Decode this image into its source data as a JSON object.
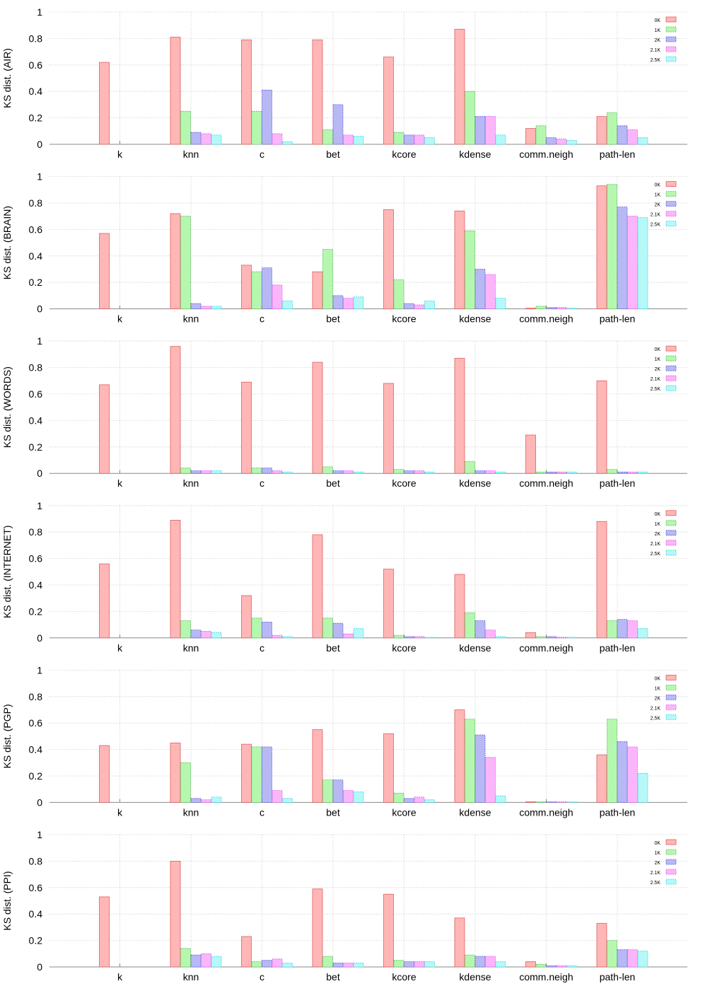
{
  "colors": {
    "series": [
      "#ffb6b6",
      "#b6f7b0",
      "#b8b8f5",
      "#fbb6fb",
      "#b6f8f8"
    ],
    "edges": [
      "#e06060",
      "#60c060",
      "#6060e0",
      "#e060e0",
      "#40d8e0"
    ],
    "grid": "#cccccc",
    "axis": "#888888"
  },
  "chart_data": [
    {
      "type": "bar",
      "ylabel": "KS dist. (AIR)",
      "ylim": [
        0,
        1
      ],
      "yticks": [
        "0",
        "0.2",
        "0.4",
        "0.6",
        "0.8",
        "1"
      ],
      "categories": [
        "k",
        "knn",
        "c",
        "bet",
        "kcore",
        "kdense",
        "comm.neigh",
        "path-len"
      ],
      "series": [
        {
          "name": "0K",
          "values": [
            0.62,
            0.81,
            0.79,
            0.79,
            0.66,
            0.87,
            0.12,
            0.21
          ]
        },
        {
          "name": "1K",
          "values": [
            0.0,
            0.25,
            0.25,
            0.11,
            0.09,
            0.4,
            0.14,
            0.24
          ]
        },
        {
          "name": "2K",
          "values": [
            0.0,
            0.09,
            0.41,
            0.3,
            0.07,
            0.21,
            0.05,
            0.14
          ]
        },
        {
          "name": "2.1K",
          "values": [
            0.0,
            0.08,
            0.08,
            0.07,
            0.07,
            0.21,
            0.04,
            0.11
          ]
        },
        {
          "name": "2.5K",
          "values": [
            0.0,
            0.07,
            0.02,
            0.06,
            0.05,
            0.07,
            0.03,
            0.05
          ]
        }
      ]
    },
    {
      "type": "bar",
      "ylabel": "KS dist. (BRAIN)",
      "ylim": [
        0,
        1
      ],
      "yticks": [
        "0",
        "0.2",
        "0.4",
        "0.6",
        "0.8",
        "1"
      ],
      "categories": [
        "k",
        "knn",
        "c",
        "bet",
        "kcore",
        "kdense",
        "comm.neigh",
        "path-len"
      ],
      "series": [
        {
          "name": "0K",
          "values": [
            0.57,
            0.72,
            0.33,
            0.28,
            0.75,
            0.74,
            0.005,
            0.93
          ]
        },
        {
          "name": "1K",
          "values": [
            0.0,
            0.7,
            0.28,
            0.45,
            0.22,
            0.59,
            0.02,
            0.94
          ]
        },
        {
          "name": "2K",
          "values": [
            0.0,
            0.04,
            0.31,
            0.1,
            0.04,
            0.3,
            0.01,
            0.77
          ]
        },
        {
          "name": "2.1K",
          "values": [
            0.0,
            0.02,
            0.18,
            0.08,
            0.03,
            0.26,
            0.01,
            0.7
          ]
        },
        {
          "name": "2.5K",
          "values": [
            0.0,
            0.02,
            0.06,
            0.09,
            0.06,
            0.08,
            0.005,
            0.69
          ]
        }
      ]
    },
    {
      "type": "bar",
      "ylabel": "KS dist. (WORDS)",
      "ylim": [
        0,
        1
      ],
      "yticks": [
        "0",
        "0.2",
        "0.4",
        "0.6",
        "0.8",
        "1"
      ],
      "categories": [
        "k",
        "knn",
        "c",
        "bet",
        "kcore",
        "kdense",
        "comm.neigh",
        "path-len"
      ],
      "series": [
        {
          "name": "0K",
          "values": [
            0.67,
            0.96,
            0.69,
            0.84,
            0.68,
            0.87,
            0.29,
            0.7
          ]
        },
        {
          "name": "1K",
          "values": [
            0.0,
            0.04,
            0.04,
            0.05,
            0.03,
            0.09,
            0.01,
            0.03
          ]
        },
        {
          "name": "2K",
          "values": [
            0.0,
            0.02,
            0.04,
            0.02,
            0.02,
            0.02,
            0.01,
            0.01
          ]
        },
        {
          "name": "2.1K",
          "values": [
            0.0,
            0.02,
            0.02,
            0.02,
            0.02,
            0.02,
            0.01,
            0.01
          ]
        },
        {
          "name": "2.5K",
          "values": [
            0.0,
            0.02,
            0.01,
            0.01,
            0.01,
            0.01,
            0.01,
            0.01
          ]
        }
      ]
    },
    {
      "type": "bar",
      "ylabel": "KS dist. (INTERNET)",
      "ylim": [
        0,
        1
      ],
      "yticks": [
        "0",
        "0.2",
        "0.4",
        "0.6",
        "0.8",
        "1"
      ],
      "categories": [
        "k",
        "knn",
        "c",
        "bet",
        "kcore",
        "kdense",
        "comm.neigh",
        "path-len"
      ],
      "series": [
        {
          "name": "0K",
          "values": [
            0.56,
            0.89,
            0.32,
            0.78,
            0.52,
            0.48,
            0.04,
            0.88
          ]
        },
        {
          "name": "1K",
          "values": [
            0.0,
            0.13,
            0.15,
            0.15,
            0.02,
            0.19,
            0.01,
            0.13
          ]
        },
        {
          "name": "2K",
          "values": [
            0.0,
            0.06,
            0.12,
            0.11,
            0.01,
            0.13,
            0.01,
            0.14
          ]
        },
        {
          "name": "2.1K",
          "values": [
            0.0,
            0.05,
            0.02,
            0.03,
            0.01,
            0.06,
            0.005,
            0.13
          ]
        },
        {
          "name": "2.5K",
          "values": [
            0.0,
            0.04,
            0.01,
            0.07,
            0.005,
            0.01,
            0.005,
            0.07
          ]
        }
      ]
    },
    {
      "type": "bar",
      "ylabel": "KS dist. (PGP)",
      "ylim": [
        0,
        1
      ],
      "yticks": [
        "0",
        "0.2",
        "0.4",
        "0.6",
        "0.8",
        "1"
      ],
      "categories": [
        "k",
        "knn",
        "c",
        "bet",
        "kcore",
        "kdense",
        "comm.neigh",
        "path-len"
      ],
      "series": [
        {
          "name": "0K",
          "values": [
            0.43,
            0.45,
            0.44,
            0.55,
            0.52,
            0.7,
            0.005,
            0.36
          ]
        },
        {
          "name": "1K",
          "values": [
            0.0,
            0.3,
            0.42,
            0.17,
            0.07,
            0.63,
            0.005,
            0.63
          ]
        },
        {
          "name": "2K",
          "values": [
            0.0,
            0.03,
            0.42,
            0.17,
            0.03,
            0.51,
            0.005,
            0.46
          ]
        },
        {
          "name": "2.1K",
          "values": [
            0.0,
            0.02,
            0.09,
            0.09,
            0.04,
            0.34,
            0.005,
            0.42
          ]
        },
        {
          "name": "2.5K",
          "values": [
            0.0,
            0.04,
            0.03,
            0.08,
            0.02,
            0.05,
            0.005,
            0.22
          ]
        }
      ]
    },
    {
      "type": "bar",
      "ylabel": "KS dist. (PPI)",
      "ylim": [
        0,
        1
      ],
      "yticks": [
        "0",
        "0.2",
        "0.4",
        "0.6",
        "0.8",
        "1"
      ],
      "categories": [
        "k",
        "knn",
        "c",
        "bet",
        "kcore",
        "kdense",
        "comm.neigh",
        "path-len"
      ],
      "series": [
        {
          "name": "0K",
          "values": [
            0.53,
            0.8,
            0.23,
            0.59,
            0.55,
            0.37,
            0.04,
            0.33
          ]
        },
        {
          "name": "1K",
          "values": [
            0.0,
            0.14,
            0.04,
            0.08,
            0.05,
            0.09,
            0.02,
            0.2
          ]
        },
        {
          "name": "2K",
          "values": [
            0.0,
            0.09,
            0.05,
            0.03,
            0.04,
            0.08,
            0.01,
            0.13
          ]
        },
        {
          "name": "2.1K",
          "values": [
            0.0,
            0.1,
            0.06,
            0.03,
            0.04,
            0.08,
            0.01,
            0.13
          ]
        },
        {
          "name": "2.5K",
          "values": [
            0.0,
            0.08,
            0.03,
            0.03,
            0.04,
            0.04,
            0.01,
            0.12
          ]
        }
      ]
    }
  ]
}
